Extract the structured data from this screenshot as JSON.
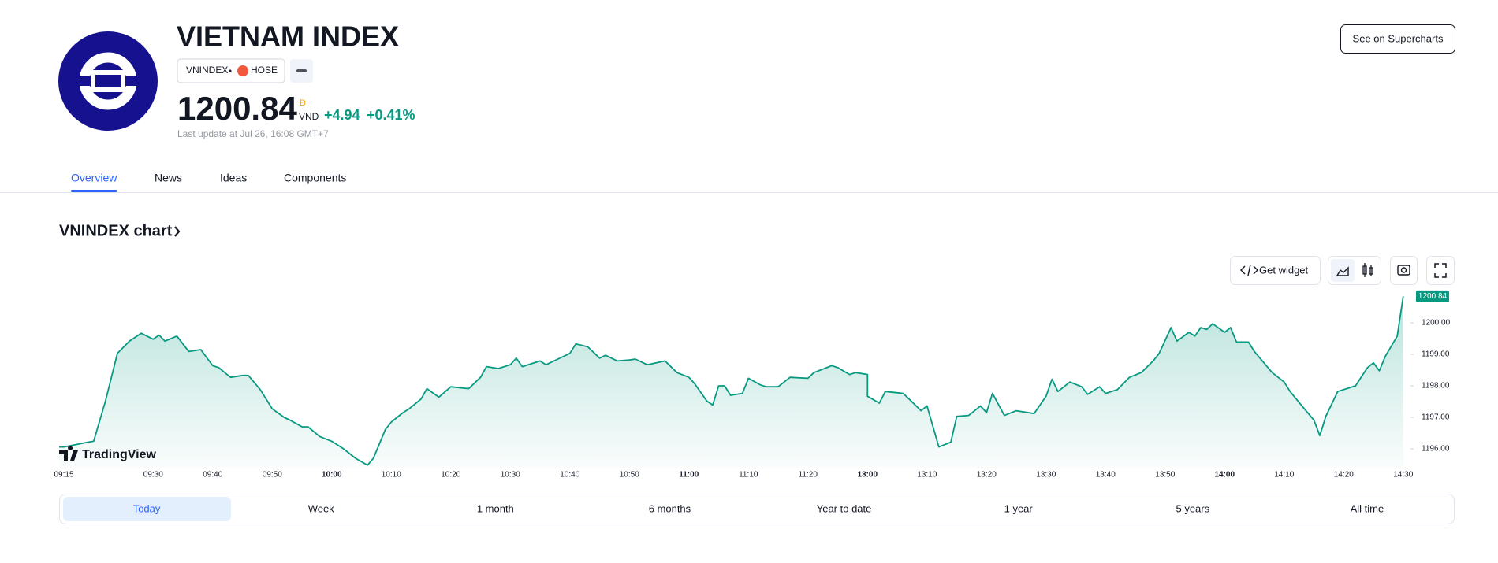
{
  "header": {
    "title": "VIETNAM INDEX",
    "symbol": "VNINDEX",
    "exchange": "HOSE",
    "price": "1200.84",
    "currency_symbol": "Đ",
    "currency": "VND",
    "change": "+4.94",
    "change_percent": "+0.41%",
    "last_update": "Last update at Jul 26, 16:08 GMT+7",
    "supercharts_button": "See on Supercharts"
  },
  "tabs": [
    "Overview",
    "News",
    "Ideas",
    "Components"
  ],
  "chart_section": {
    "heading": "VNINDEX chart",
    "get_widget": "Get widget",
    "watermark": "TradingView",
    "ranges": [
      "Today",
      "Week",
      "1 month",
      "6 months",
      "Year to date",
      "1 year",
      "5 years",
      "All time"
    ]
  },
  "chart_data": {
    "type": "line",
    "color": "#089981",
    "x": [
      "09:15",
      "09:19",
      "09:20",
      "09:22",
      "09:24",
      "09:26",
      "09:28",
      "09:30",
      "09:31",
      "09:32",
      "09:34",
      "09:35",
      "09:36",
      "09:38",
      "09:40",
      "09:41",
      "09:43",
      "09:45",
      "09:46",
      "09:48",
      "09:50",
      "09:52",
      "09:53",
      "09:55",
      "09:56",
      "09:58",
      "10:00",
      "10:02",
      "10:04",
      "10:06",
      "10:07",
      "10:09",
      "10:10",
      "10:12",
      "10:13",
      "10:15",
      "10:16",
      "10:18",
      "10:20",
      "10:23",
      "10:25",
      "10:26",
      "10:28",
      "10:30",
      "10:31",
      "10:32",
      "10:35",
      "10:36",
      "10:38",
      "10:40",
      "10:41",
      "10:43",
      "10:45",
      "10:46",
      "10:48",
      "10:50",
      "10:51",
      "10:53",
      "10:56",
      "10:58",
      "11:00",
      "11:01",
      "11:03",
      "11:04",
      "11:05",
      "11:06",
      "11:07",
      "11:09",
      "11:10",
      "11:12",
      "11:13",
      "11:15",
      "11:17",
      "11:20",
      "11:21",
      "11:24",
      "11:25",
      "11:27",
      "11:28",
      "11:30",
      "13:00",
      "13:02",
      "13:03",
      "13:06",
      "13:07",
      "13:09",
      "13:10",
      "13:12",
      "13:14",
      "13:15",
      "13:17",
      "13:19",
      "13:20",
      "13:21",
      "13:23",
      "13:25",
      "13:28",
      "13:30",
      "13:31",
      "13:32",
      "13:34",
      "13:36",
      "13:37",
      "13:39",
      "13:40",
      "13:42",
      "13:44",
      "13:46",
      "13:48",
      "13:49",
      "13:51",
      "13:52",
      "13:54",
      "13:55",
      "13:56",
      "13:57",
      "13:58",
      "14:00",
      "14:01",
      "14:02",
      "14:04",
      "14:05",
      "14:08",
      "14:10",
      "14:11",
      "14:13",
      "14:15",
      "14:16",
      "14:17",
      "14:19",
      "14:21",
      "14:22",
      "14:24",
      "14:25",
      "14:26",
      "14:27",
      "14:29",
      "14:30"
    ],
    "values": [
      1196.06,
      1196.21,
      1196.24,
      1197.52,
      1199.03,
      1199.42,
      1199.67,
      1199.48,
      1199.61,
      1199.42,
      1199.58,
      1199.33,
      1199.09,
      1199.15,
      1198.64,
      1198.58,
      1198.27,
      1198.33,
      1198.33,
      1197.88,
      1197.27,
      1197.0,
      1196.91,
      1196.7,
      1196.7,
      1196.39,
      1196.24,
      1196.0,
      1195.7,
      1195.48,
      1195.7,
      1196.61,
      1196.85,
      1197.15,
      1197.27,
      1197.58,
      1197.91,
      1197.64,
      1197.97,
      1197.91,
      1198.27,
      1198.61,
      1198.55,
      1198.67,
      1198.88,
      1198.61,
      1198.79,
      1198.67,
      1198.85,
      1199.03,
      1199.33,
      1199.24,
      1198.88,
      1198.97,
      1198.79,
      1198.82,
      1198.85,
      1198.67,
      1198.79,
      1198.42,
      1198.27,
      1198.06,
      1197.52,
      1197.39,
      1198.0,
      1198.0,
      1197.7,
      1197.76,
      1198.24,
      1198.03,
      1197.97,
      1197.97,
      1198.27,
      1198.24,
      1198.42,
      1198.64,
      1198.58,
      1198.36,
      1198.42,
      1198.36,
      1197.67,
      1197.45,
      1197.82,
      1197.76,
      1197.58,
      1197.21,
      1197.36,
      1196.06,
      1196.21,
      1197.03,
      1197.06,
      1197.36,
      1197.15,
      1197.76,
      1197.06,
      1197.21,
      1197.12,
      1197.67,
      1198.21,
      1197.82,
      1198.12,
      1197.97,
      1197.73,
      1197.97,
      1197.76,
      1197.88,
      1198.27,
      1198.42,
      1198.79,
      1199.03,
      1199.85,
      1199.42,
      1199.7,
      1199.58,
      1199.85,
      1199.79,
      1199.97,
      1199.7,
      1199.85,
      1199.39,
      1199.39,
      1199.09,
      1198.42,
      1198.12,
      1197.82,
      1197.36,
      1196.91,
      1196.42,
      1197.03,
      1197.82,
      1197.94,
      1198.0,
      1198.58,
      1198.73,
      1198.48,
      1198.94,
      1199.58,
      1200.84
    ],
    "ylim": [
      1195.4,
      1201.0
    ],
    "yticks": [
      {
        "value": 1196,
        "label": "1196.00"
      },
      {
        "value": 1197,
        "label": "1197.00"
      },
      {
        "value": 1198,
        "label": "1198.00"
      },
      {
        "value": 1199,
        "label": "1199.00"
      },
      {
        "value": 1200,
        "label": "1200.00"
      }
    ],
    "xticks": [
      "09:15",
      "09:30",
      "09:40",
      "09:50",
      "10:00",
      "10:10",
      "10:20",
      "10:30",
      "10:40",
      "10:50",
      "11:00",
      "11:10",
      "11:20",
      "13:00",
      "13:10",
      "13:20",
      "13:30",
      "13:40",
      "13:50",
      "14:00",
      "14:10",
      "14:20",
      "14:30"
    ]
  }
}
